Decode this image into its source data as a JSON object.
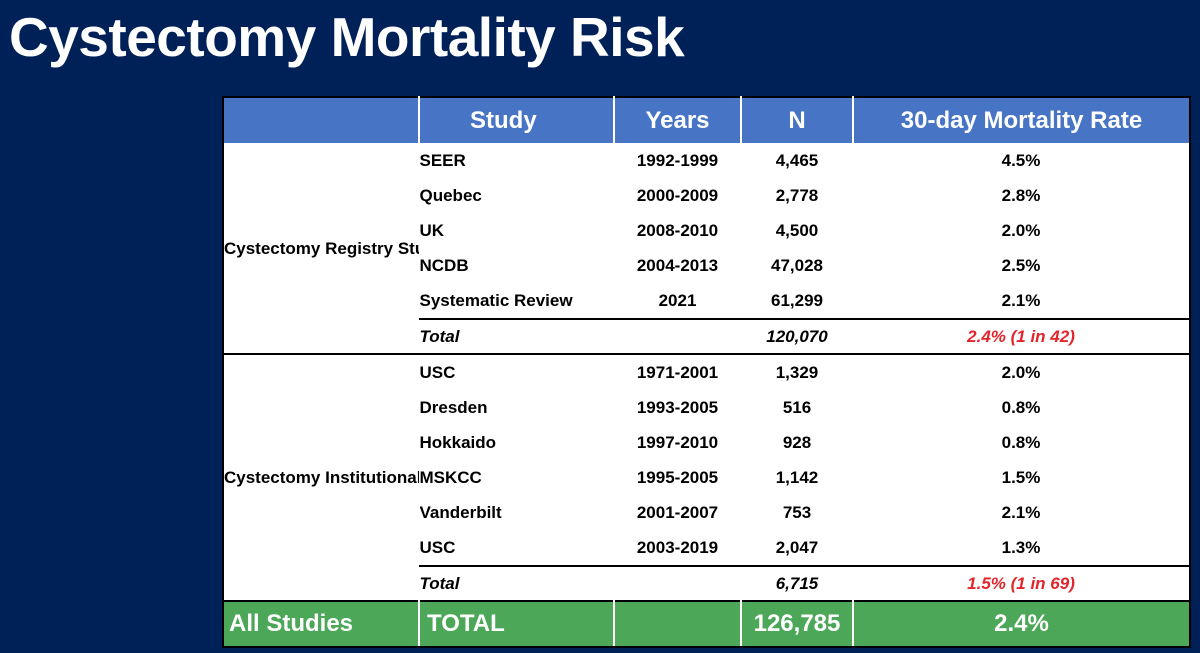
{
  "slide": {
    "title": "Cystectomy Mortality Risk"
  },
  "table": {
    "headers": {
      "group": "",
      "study": "Study",
      "years": "Years",
      "n": "N",
      "rate": "30-day Mortality Rate"
    },
    "sections": [
      {
        "group_label": "Cystectomy Registry Studies and Systematic Reviews",
        "rows": [
          {
            "study": "SEER",
            "years": "1992-1999",
            "n": "4,465",
            "rate": "4.5%"
          },
          {
            "study": "Quebec",
            "years": "2000-2009",
            "n": "2,778",
            "rate": "2.8%"
          },
          {
            "study": "UK",
            "years": "2008-2010",
            "n": "4,500",
            "rate": "2.0%"
          },
          {
            "study": "NCDB",
            "years": "2004-2013",
            "n": "47,028",
            "rate": "2.5%"
          },
          {
            "study": "Systematic Review",
            "years": "2021",
            "n": "61,299",
            "rate": "2.1%"
          }
        ],
        "total": {
          "label": "Total",
          "n": "120,070",
          "rate": "2.4% (1 in 42)"
        }
      },
      {
        "group_label": "Cystectomy Institutional Studies",
        "rows": [
          {
            "study": "USC",
            "years": "1971-2001",
            "n": "1,329",
            "rate": "2.0%"
          },
          {
            "study": "Dresden",
            "years": "1993-2005",
            "n": "516",
            "rate": "0.8%"
          },
          {
            "study": "Hokkaido",
            "years": "1997-2010",
            "n": "928",
            "rate": "0.8%"
          },
          {
            "study": "MSKCC",
            "years": "1995-2005",
            "n": "1,142",
            "rate": "1.5%"
          },
          {
            "study": "Vanderbilt",
            "years": "2001-2007",
            "n": "753",
            "rate": "2.1%"
          },
          {
            "study": "USC",
            "years": "2003-2019",
            "n": "2,047",
            "rate": "1.3%"
          }
        ],
        "total": {
          "label": "Total",
          "n": "6,715",
          "rate": "1.5% (1 in 69)"
        }
      }
    ],
    "footer": {
      "group": "All Studies",
      "label": "TOTAL",
      "years": "",
      "n": "126,785",
      "rate": "2.4%"
    }
  },
  "colors": {
    "background": "#002058",
    "header": "#4774c4",
    "footer": "#4ca858",
    "total_rate": "#e3242b"
  }
}
